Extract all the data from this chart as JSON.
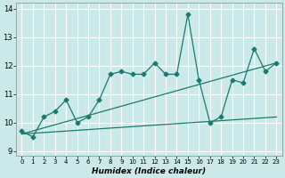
{
  "xlabel": "Humidex (Indice chaleur)",
  "bg_color": "#cce9e9",
  "line_color": "#1a7a6e",
  "grid_color": "#ffffff",
  "xlim": [
    -0.5,
    23.5
  ],
  "ylim": [
    8.85,
    14.2
  ],
  "yticks": [
    9,
    10,
    11,
    12,
    13,
    14
  ],
  "xticks": [
    0,
    1,
    2,
    3,
    4,
    5,
    6,
    7,
    8,
    9,
    10,
    11,
    12,
    13,
    14,
    15,
    16,
    17,
    18,
    19,
    20,
    21,
    22,
    23
  ],
  "series1_x": [
    0,
    1,
    2,
    3,
    4,
    5,
    6,
    7,
    8,
    9,
    10,
    11,
    12,
    13,
    14,
    15,
    16,
    17,
    18,
    19,
    20,
    21,
    22,
    23
  ],
  "series1_y": [
    9.7,
    9.5,
    10.2,
    10.4,
    10.8,
    10.0,
    10.2,
    10.8,
    11.7,
    11.8,
    11.7,
    11.7,
    12.1,
    11.7,
    11.7,
    13.8,
    11.5,
    10.0,
    10.2,
    11.5,
    11.4,
    12.6,
    11.8,
    12.1
  ],
  "trend1_x": [
    0,
    23
  ],
  "trend1_y": [
    9.6,
    10.2
  ],
  "trend2_x": [
    0,
    23
  ],
  "trend2_y": [
    9.6,
    12.1
  ],
  "markersize": 2.5,
  "linewidth": 0.9
}
